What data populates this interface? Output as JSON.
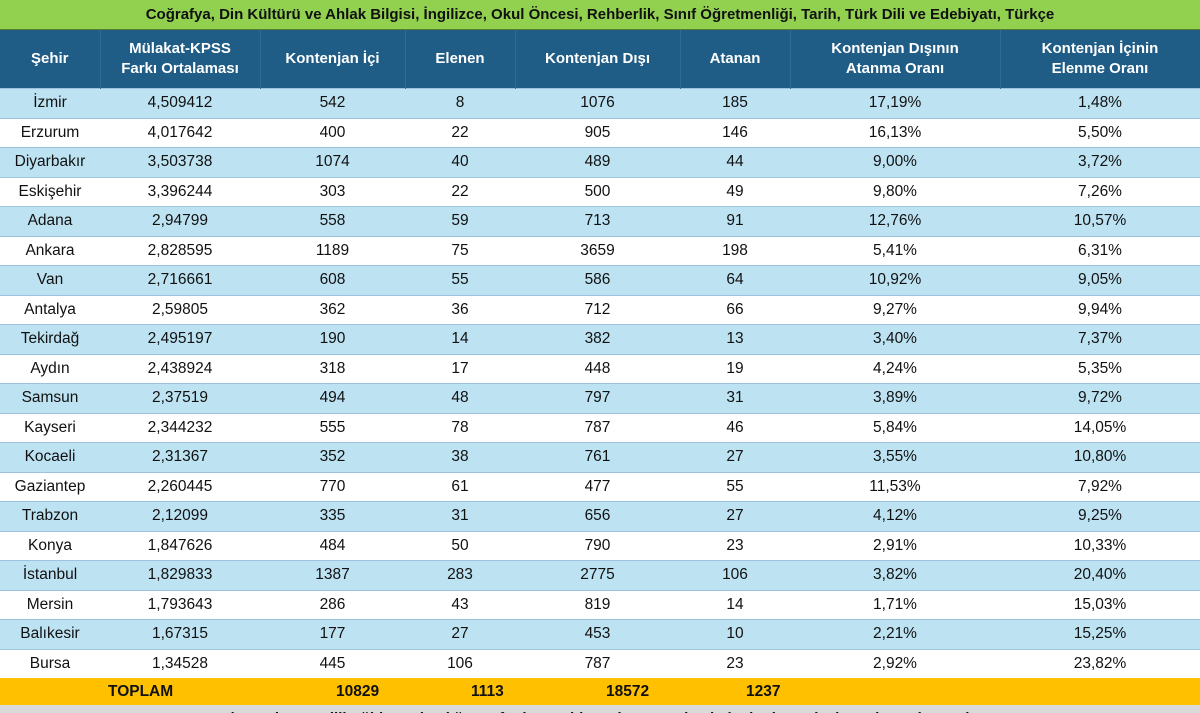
{
  "title": "Coğrafya, Din Kültürü ve Ahlak Bilgisi, İngilizce, Okul Öncesi, Rehberlik, Sınıf Öğretmenliği, Tarih, Türk Dili ve Edebiyatı, Türkçe",
  "headers": {
    "city": "Şehir",
    "avg_line1": "Mülakat-KPSS",
    "avg_line2": "Farkı Ortalaması",
    "kontenjan_ici": "Kontenjan İçi",
    "elenen": "Elenen",
    "kontenjan_disi": "Kontenjan Dışı",
    "atanan": "Atanan",
    "kd_rate_line1": "Kontenjan Dışının",
    "kd_rate_line2": "Atanma Oranı",
    "ki_rate_line1": "Kontenjan İçinin",
    "ki_rate_line2": "Elenme Oranı"
  },
  "rows": [
    {
      "city": "İzmir",
      "avg": "4,509412",
      "ki": "542",
      "elen": "8",
      "kd": "1076",
      "atanan": "185",
      "kd_rate": "17,19%",
      "ki_rate": "1,48%"
    },
    {
      "city": "Erzurum",
      "avg": "4,017642",
      "ki": "400",
      "elen": "22",
      "kd": "905",
      "atanan": "146",
      "kd_rate": "16,13%",
      "ki_rate": "5,50%"
    },
    {
      "city": "Diyarbakır",
      "avg": "3,503738",
      "ki": "1074",
      "elen": "40",
      "kd": "489",
      "atanan": "44",
      "kd_rate": "9,00%",
      "ki_rate": "3,72%"
    },
    {
      "city": "Eskişehir",
      "avg": "3,396244",
      "ki": "303",
      "elen": "22",
      "kd": "500",
      "atanan": "49",
      "kd_rate": "9,80%",
      "ki_rate": "7,26%"
    },
    {
      "city": "Adana",
      "avg": "2,94799",
      "ki": "558",
      "elen": "59",
      "kd": "713",
      "atanan": "91",
      "kd_rate": "12,76%",
      "ki_rate": "10,57%"
    },
    {
      "city": "Ankara",
      "avg": "2,828595",
      "ki": "1189",
      "elen": "75",
      "kd": "3659",
      "atanan": "198",
      "kd_rate": "5,41%",
      "ki_rate": "6,31%"
    },
    {
      "city": "Van",
      "avg": "2,716661",
      "ki": "608",
      "elen": "55",
      "kd": "586",
      "atanan": "64",
      "kd_rate": "10,92%",
      "ki_rate": "9,05%"
    },
    {
      "city": "Antalya",
      "avg": "2,59805",
      "ki": "362",
      "elen": "36",
      "kd": "712",
      "atanan": "66",
      "kd_rate": "9,27%",
      "ki_rate": "9,94%"
    },
    {
      "city": "Tekirdağ",
      "avg": "2,495197",
      "ki": "190",
      "elen": "14",
      "kd": "382",
      "atanan": "13",
      "kd_rate": "3,40%",
      "ki_rate": "7,37%"
    },
    {
      "city": "Aydın",
      "avg": "2,438924",
      "ki": "318",
      "elen": "17",
      "kd": "448",
      "atanan": "19",
      "kd_rate": "4,24%",
      "ki_rate": "5,35%"
    },
    {
      "city": "Samsun",
      "avg": "2,37519",
      "ki": "494",
      "elen": "48",
      "kd": "797",
      "atanan": "31",
      "kd_rate": "3,89%",
      "ki_rate": "9,72%"
    },
    {
      "city": "Kayseri",
      "avg": "2,344232",
      "ki": "555",
      "elen": "78",
      "kd": "787",
      "atanan": "46",
      "kd_rate": "5,84%",
      "ki_rate": "14,05%"
    },
    {
      "city": "Kocaeli",
      "avg": "2,31367",
      "ki": "352",
      "elen": "38",
      "kd": "761",
      "atanan": "27",
      "kd_rate": "3,55%",
      "ki_rate": "10,80%"
    },
    {
      "city": "Gaziantep",
      "avg": "2,260445",
      "ki": "770",
      "elen": "61",
      "kd": "477",
      "atanan": "55",
      "kd_rate": "11,53%",
      "ki_rate": "7,92%"
    },
    {
      "city": "Trabzon",
      "avg": "2,12099",
      "ki": "335",
      "elen": "31",
      "kd": "656",
      "atanan": "27",
      "kd_rate": "4,12%",
      "ki_rate": "9,25%"
    },
    {
      "city": "Konya",
      "avg": "1,847626",
      "ki": "484",
      "elen": "50",
      "kd": "790",
      "atanan": "23",
      "kd_rate": "2,91%",
      "ki_rate": "10,33%"
    },
    {
      "city": "İstanbul",
      "avg": "1,829833",
      "ki": "1387",
      "elen": "283",
      "kd": "2775",
      "atanan": "106",
      "kd_rate": "3,82%",
      "ki_rate": "20,40%"
    },
    {
      "city": "Mersin",
      "avg": "1,793643",
      "ki": "286",
      "elen": "43",
      "kd": "819",
      "atanan": "14",
      "kd_rate": "1,71%",
      "ki_rate": "15,03%"
    },
    {
      "city": "Balıkesir",
      "avg": "1,67315",
      "ki": "177",
      "elen": "27",
      "kd": "453",
      "atanan": "10",
      "kd_rate": "2,21%",
      "ki_rate": "15,25%"
    },
    {
      "city": "Bursa",
      "avg": "1,34528",
      "ki": "445",
      "elen": "106",
      "kd": "787",
      "atanan": "23",
      "kd_rate": "2,92%",
      "ki_rate": "23,82%"
    }
  ],
  "totals": {
    "label": "TOPLAM",
    "kontenjan_ici": "10829",
    "elenen": "1113",
    "kontenjan_disi": "18572",
    "atanan": "1237"
  },
  "footer": "(Bu çalışma Milli Eğitim Bakanlığı tarafından mahkemelere sunulan belgeler kaynak alınarak yapılmıştır.)",
  "colors": {
    "title_bg": "#92d050",
    "header_bg": "#1f5c86",
    "row_even_bg": "#bde3f3",
    "row_odd_bg": "#ffffff",
    "total_bg": "#ffc000",
    "footer_bg": "#d9d9d9"
  }
}
